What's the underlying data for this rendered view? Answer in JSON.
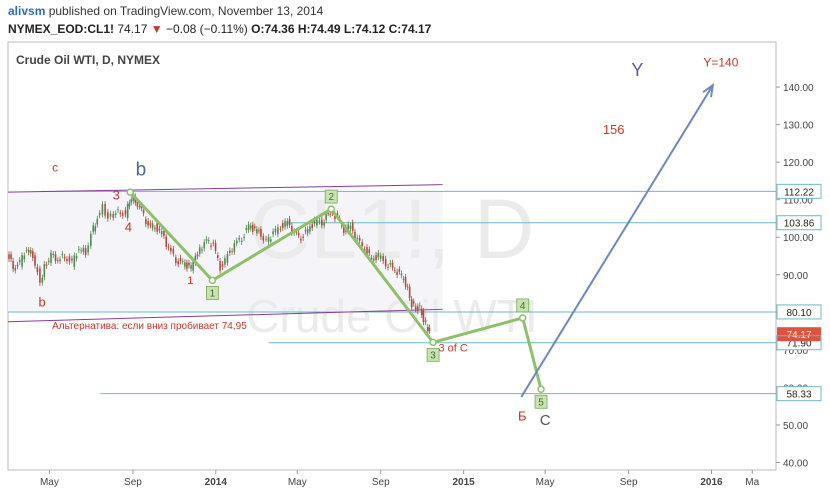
{
  "header": {
    "user": "alivsm",
    "published_text": "published on TradingView.com, November 13, 2014",
    "symbol": "NYMEX_EOD:CL1!",
    "last": "74.17",
    "change": "−0.08 (−0.11%)",
    "o_label": "O:",
    "o": "74.36",
    "h_label": "H:",
    "h": "74.49",
    "l_label": "L:",
    "l": "74.12",
    "c_label": "C:",
    "c": "74.17"
  },
  "chart_title": "Crude Oil WTI, D, NYMEX",
  "chart_data": {
    "type": "line",
    "title": "Crude Oil WTI, D, NYMEX",
    "watermark_symbol": "CL1!, D",
    "watermark_name": "Crude Oil WTI",
    "ylim": [
      38,
      152
    ],
    "y_ticks": [
      40,
      50,
      60,
      70,
      80,
      90,
      100,
      110,
      120,
      130,
      140
    ],
    "x_range": [
      "2013-03-01",
      "2016-04-05"
    ],
    "x_ticks": [
      {
        "label": "May",
        "date": "2013-05-01"
      },
      {
        "label": "Sep",
        "date": "2013-09-01"
      },
      {
        "label": "2014",
        "date": "2014-01-01"
      },
      {
        "label": "May",
        "date": "2014-05-01"
      },
      {
        "label": "Sep",
        "date": "2014-09-01"
      },
      {
        "label": "2015",
        "date": "2015-01-01"
      },
      {
        "label": "May",
        "date": "2015-05-01"
      },
      {
        "label": "Sep",
        "date": "2015-09-01"
      },
      {
        "label": "2016",
        "date": "2016-01-01"
      },
      {
        "label": "Ma",
        "date": "2016-03-01"
      }
    ],
    "price_series": [
      [
        "2013-03-01",
        96
      ],
      [
        "2013-03-10",
        92
      ],
      [
        "2013-03-20",
        93
      ],
      [
        "2013-03-30",
        97
      ],
      [
        "2013-04-08",
        95
      ],
      [
        "2013-04-15",
        91
      ],
      [
        "2013-04-19",
        87
      ],
      [
        "2013-04-25",
        92
      ],
      [
        "2013-05-05",
        95
      ],
      [
        "2013-05-15",
        94
      ],
      [
        "2013-05-25",
        95
      ],
      [
        "2013-06-05",
        93
      ],
      [
        "2013-06-15",
        97
      ],
      [
        "2013-06-25",
        96
      ],
      [
        "2013-07-03",
        101
      ],
      [
        "2013-07-12",
        105
      ],
      [
        "2013-07-20",
        108
      ],
      [
        "2013-07-28",
        105
      ],
      [
        "2013-08-05",
        106
      ],
      [
        "2013-08-15",
        107
      ],
      [
        "2013-08-23",
        106
      ],
      [
        "2013-08-28",
        110
      ],
      [
        "2013-09-06",
        110
      ],
      [
        "2013-09-15",
        107
      ],
      [
        "2013-09-25",
        103
      ],
      [
        "2013-10-05",
        103
      ],
      [
        "2013-10-15",
        101
      ],
      [
        "2013-10-25",
        97
      ],
      [
        "2013-11-05",
        94
      ],
      [
        "2013-11-15",
        93
      ],
      [
        "2013-11-27",
        92
      ],
      [
        "2013-12-10",
        97
      ],
      [
        "2013-12-20",
        99
      ],
      [
        "2013-12-30",
        98
      ],
      [
        "2014-01-09",
        92
      ],
      [
        "2014-01-20",
        95
      ],
      [
        "2014-01-30",
        98
      ],
      [
        "2014-02-10",
        100
      ],
      [
        "2014-02-20",
        103
      ],
      [
        "2014-03-01",
        102
      ],
      [
        "2014-03-10",
        101
      ],
      [
        "2014-03-18",
        99
      ],
      [
        "2014-03-28",
        101
      ],
      [
        "2014-04-08",
        103
      ],
      [
        "2014-04-18",
        104
      ],
      [
        "2014-04-28",
        101
      ],
      [
        "2014-05-08",
        100
      ],
      [
        "2014-05-18",
        102
      ],
      [
        "2014-05-28",
        104
      ],
      [
        "2014-06-08",
        104
      ],
      [
        "2014-06-20",
        107
      ],
      [
        "2014-07-01",
        105
      ],
      [
        "2014-07-10",
        102
      ],
      [
        "2014-07-20",
        103
      ],
      [
        "2014-07-30",
        99
      ],
      [
        "2014-08-10",
        97
      ],
      [
        "2014-08-20",
        94
      ],
      [
        "2014-08-30",
        95
      ],
      [
        "2014-09-10",
        93
      ],
      [
        "2014-09-20",
        92
      ],
      [
        "2014-09-30",
        90
      ],
      [
        "2014-10-06",
        89
      ],
      [
        "2014-10-12",
        86
      ],
      [
        "2014-10-18",
        82
      ],
      [
        "2014-10-24",
        81
      ],
      [
        "2014-10-30",
        81
      ],
      [
        "2014-11-04",
        78
      ],
      [
        "2014-11-08",
        77
      ],
      [
        "2014-11-13",
        74.17
      ]
    ],
    "wave_path": [
      {
        "date": "2013-08-28",
        "price": 112,
        "label": "",
        "boxed": false
      },
      {
        "date": "2013-12-27",
        "price": 88.5,
        "label": "1",
        "boxed": true
      },
      {
        "date": "2014-06-20",
        "price": 107.5,
        "label": "2",
        "boxed": true
      },
      {
        "date": "2014-11-17",
        "price": 72.0,
        "label": "3",
        "boxed": true
      },
      {
        "date": "2015-03-29",
        "price": 78.5,
        "label": "4",
        "boxed": true
      },
      {
        "date": "2015-04-25",
        "price": 59.5,
        "label": "5",
        "boxed": true
      }
    ],
    "horizontal_levels": [
      {
        "value": 112.22,
        "from": "2013-04-20",
        "label": "112.22",
        "bg": "#2a3f55",
        "fg": "#ffffff"
      },
      {
        "value": 103.86,
        "from": "2014-04-15",
        "label": "103.86",
        "bg": "#2a3f55",
        "fg": "#ffffff"
      },
      {
        "value": 80.1,
        "from": "2013-03-01",
        "label": "80.10",
        "bg": "#2a3f55",
        "fg": "#ffffff"
      },
      {
        "value": 71.9,
        "from": "2014-03-20",
        "label": "71.90",
        "bg": "#2a3f55",
        "fg": "#ffffff"
      },
      {
        "value": 58.33,
        "from": "2013-07-15",
        "label": "58.33",
        "bg": "#2a3f55",
        "fg": "#ffffff"
      }
    ],
    "last_price_label": {
      "value": 74.17,
      "label": "74.17",
      "bg": "#e0523f",
      "fg": "#ffffff"
    },
    "channel_lines": [
      {
        "from": [
          "2013-03-01",
          112.0
        ],
        "to": [
          "2014-12-01",
          114.0
        ]
      },
      {
        "from": [
          "2013-03-01",
          77.5
        ],
        "to": [
          "2014-12-01",
          80.8
        ]
      }
    ],
    "channel_box": {
      "from": "2013-03-01",
      "to": "2014-12-01",
      "top": 112.22,
      "bottom": 80.1
    },
    "projection_arrow": {
      "from": [
        "2015-03-27",
        57.5
      ],
      "to": [
        "2016-01-03",
        140.5
      ]
    },
    "annotations": [
      {
        "text": "c",
        "date": "2013-05-05",
        "price": 117.5,
        "color": "#c0392b",
        "size": 12
      },
      {
        "text": "b",
        "date": "2013-09-05",
        "price": 116.5,
        "color": "#4a6a9a",
        "size": 19
      },
      {
        "text": "3",
        "date": "2013-08-02",
        "price": 110,
        "color": "#c0392b",
        "size": 13
      },
      {
        "text": "4",
        "date": "2013-08-20",
        "price": 101.5,
        "color": "#c0392b",
        "size": 13
      },
      {
        "text": "1",
        "date": "2013-11-20",
        "price": 87.5,
        "color": "#c0392b",
        "size": 11
      },
      {
        "text": "b",
        "date": "2013-04-15",
        "price": 81.5,
        "color": "#c0392b",
        "size": 13
      },
      {
        "text": "Альтернатива: если вниз пробивает 74,95",
        "date": "2013-05-05",
        "price": 75.5,
        "color": "#c0392b",
        "size": 10
      },
      {
        "text": "3 of C",
        "date": "2014-11-25",
        "price": 69.5,
        "color": "#c0392b",
        "size": 11
      },
      {
        "text": "Б",
        "date": "2015-03-22",
        "price": 51.2,
        "color": "#c0392b",
        "size": 13
      },
      {
        "text": "C",
        "date": "2015-04-23",
        "price": 50.0,
        "color": "#555555",
        "size": 15
      },
      {
        "text": "Y",
        "date": "2015-09-05",
        "price": 143.0,
        "color": "#5a5aa0",
        "size": 18
      },
      {
        "text": "Y=140",
        "date": "2015-12-20",
        "price": 145.5,
        "color": "#c0392b",
        "size": 12
      },
      {
        "text": "156",
        "date": "2015-07-25",
        "price": 127.5,
        "color": "#c0392b",
        "size": 13
      }
    ]
  },
  "colors": {
    "wave": "#8cc06a",
    "wave_box": "#c6e3b0",
    "level_line": "#6fb6c9",
    "channel": "#8a3a9a",
    "arrow": "#6f86c4",
    "candle_up": "#4f8a4f",
    "candle_dn": "#b04a3a",
    "watermark": "#ebebeb"
  }
}
